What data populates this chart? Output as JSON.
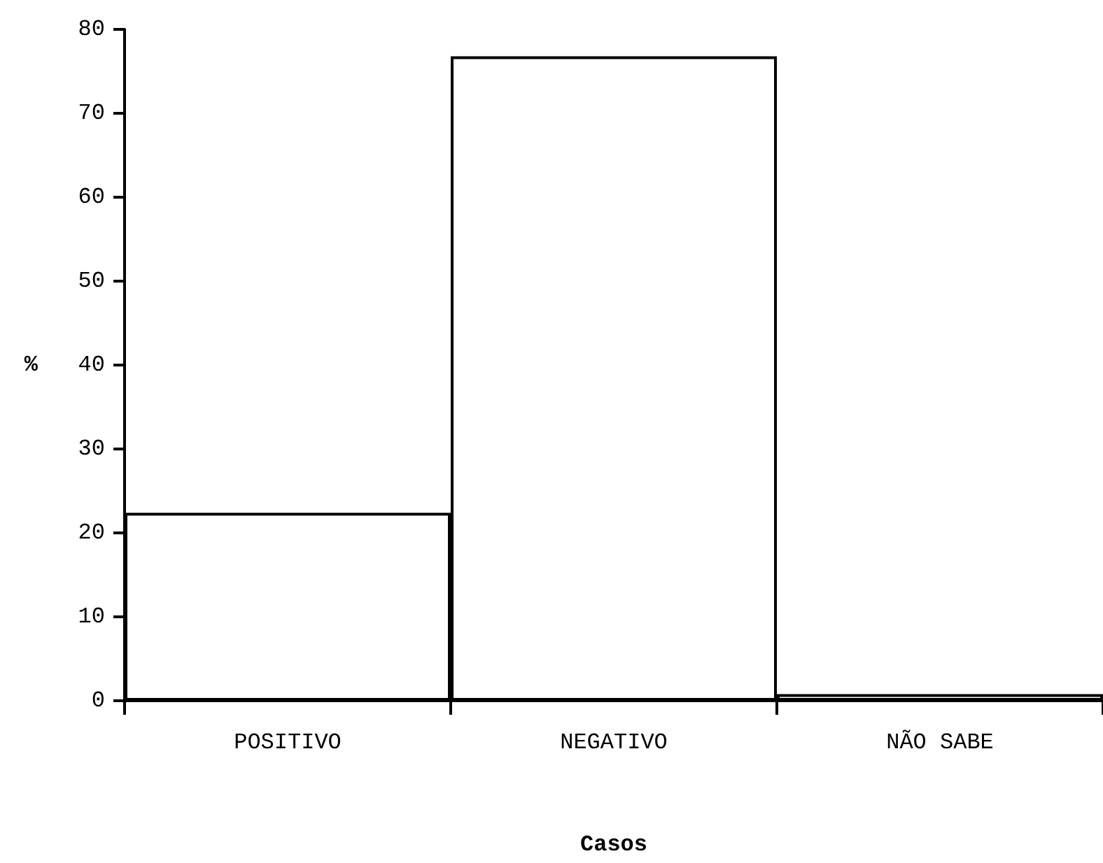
{
  "chart_data": {
    "type": "bar",
    "xlabel": "Casos",
    "ylabel": "%",
    "categories": [
      "POSITIVO",
      "NEGATIVO",
      "NÃO SABE"
    ],
    "values": [
      22.4,
      76.8,
      0.8
    ],
    "color": "#ffffff",
    "ylim": [
      0,
      80
    ],
    "yticks": [
      0,
      10,
      20,
      30,
      40,
      50,
      60,
      70,
      80
    ],
    "grid": false
  }
}
